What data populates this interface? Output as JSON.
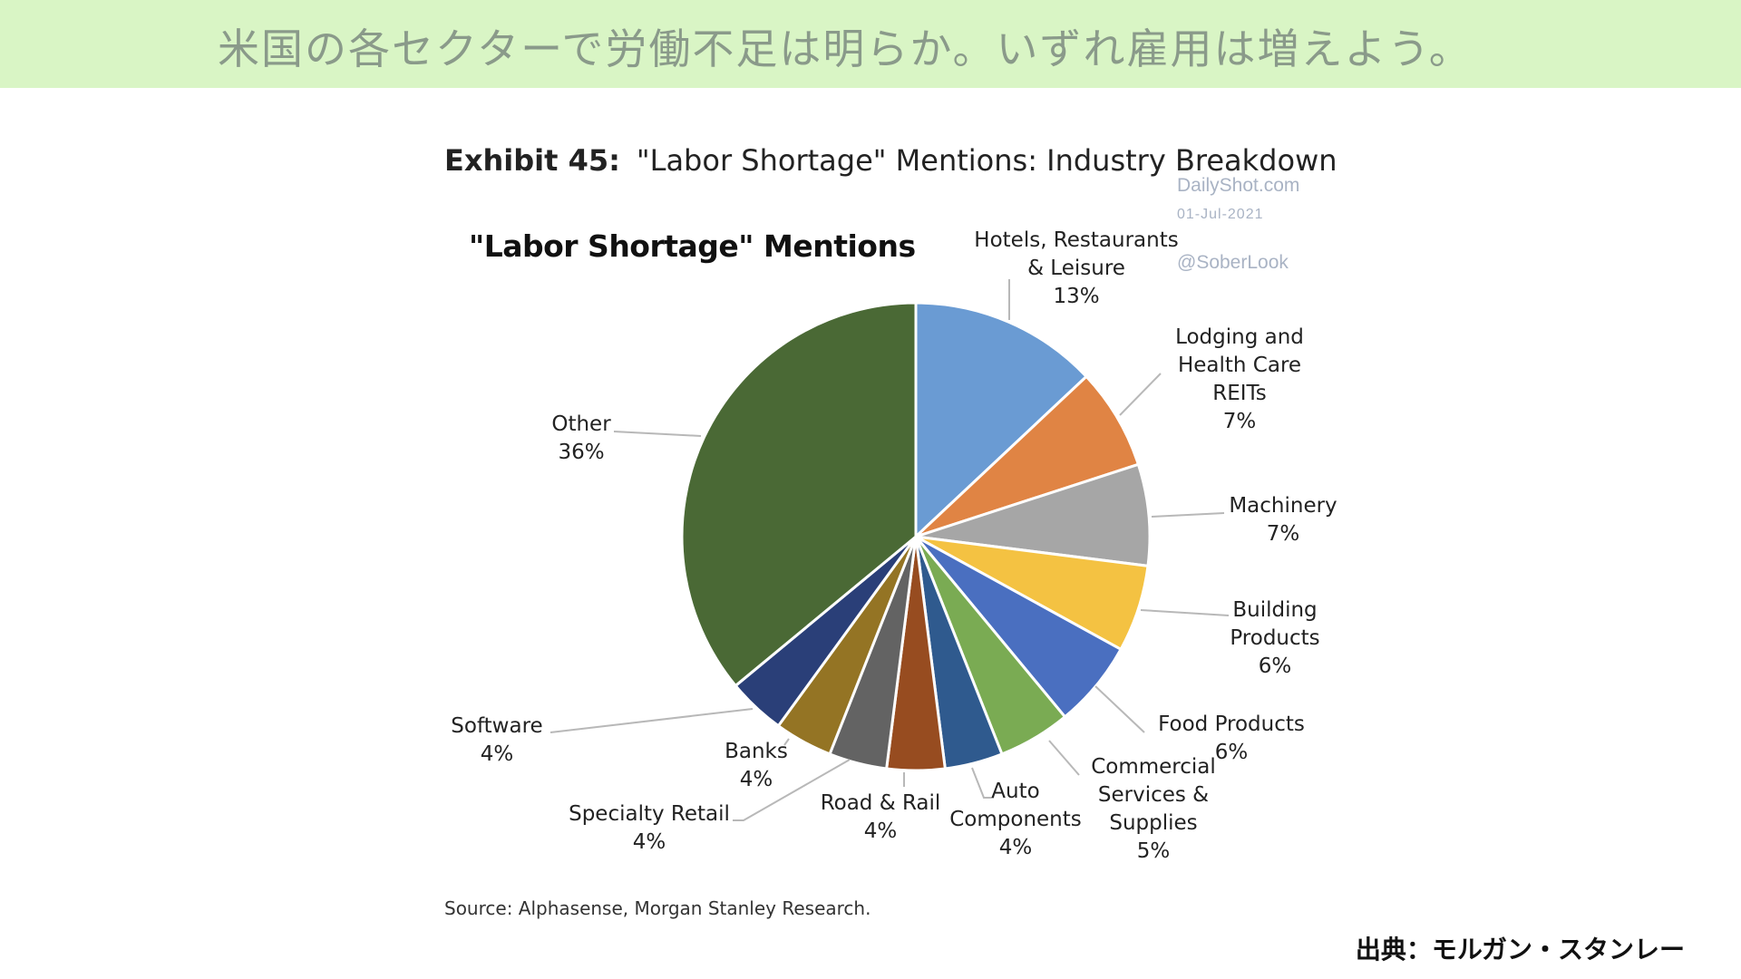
{
  "banner": {
    "text": "米国の各セクターで労働不足は明らか。いずれ雇用は増えよう。"
  },
  "exhibit": {
    "number": "Exhibit 45:",
    "title": "\"Labor Shortage\" Mentions: Industry Breakdown"
  },
  "watermark": {
    "site": "DailyShot.com",
    "date": "01-Jul-2021",
    "handle": "@SoberLook"
  },
  "source": "Source: Alphasense, Morgan Stanley Research.",
  "credit": "出典：モルガン・スタンレー",
  "chart_data": {
    "type": "pie",
    "title": "\"Labor Shortage\" Mentions",
    "unit": "%",
    "slices": [
      {
        "label": [
          "Hotels, Restaurants",
          "& Leisure"
        ],
        "pct_label": "13%",
        "value": 13,
        "color": "#6a9bd3"
      },
      {
        "label": [
          "Lodging and",
          "Health Care",
          "REITs"
        ],
        "pct_label": "7%",
        "value": 7,
        "color": "#e08444"
      },
      {
        "label": [
          "Machinery"
        ],
        "pct_label": "7%",
        "value": 7,
        "color": "#a6a6a6"
      },
      {
        "label": [
          "Building",
          "Products"
        ],
        "pct_label": "6%",
        "value": 6,
        "color": "#f4c242"
      },
      {
        "label": [
          "Food Products"
        ],
        "pct_label": "6%",
        "value": 6,
        "color": "#4a6fc0"
      },
      {
        "label": [
          "Commercial",
          "Services &",
          "Supplies"
        ],
        "pct_label": "5%",
        "value": 5,
        "color": "#7aab53"
      },
      {
        "label": [
          "Auto",
          "Components"
        ],
        "pct_label": "4%",
        "value": 4,
        "color": "#2f5a8e"
      },
      {
        "label": [
          "Road & Rail"
        ],
        "pct_label": "4%",
        "value": 4,
        "color": "#974c20"
      },
      {
        "label": [
          "Specialty Retail"
        ],
        "pct_label": "4%",
        "value": 4,
        "color": "#636363"
      },
      {
        "label": [
          "Banks"
        ],
        "pct_label": "4%",
        "value": 4,
        "color": "#947424"
      },
      {
        "label": [
          "Software"
        ],
        "pct_label": "4%",
        "value": 4,
        "color": "#2a3f78"
      },
      {
        "label": [
          "Other"
        ],
        "pct_label": "36%",
        "value": 36,
        "color": "#4a6935"
      }
    ]
  }
}
